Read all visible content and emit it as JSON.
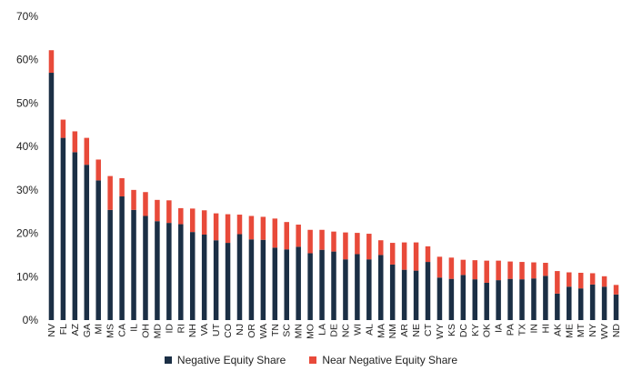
{
  "chart_data": {
    "type": "bar",
    "stacked": true,
    "title": "",
    "xlabel": "",
    "ylabel": "",
    "ylim": [
      0,
      70
    ],
    "yticks": [
      0,
      10,
      20,
      30,
      40,
      50,
      60,
      70
    ],
    "ytick_labels": [
      "0%",
      "10%",
      "20%",
      "30%",
      "40%",
      "50%",
      "60%",
      "70%"
    ],
    "grid": false,
    "legend_position": "bottom",
    "categories": [
      "NV",
      "FL",
      "AZ",
      "GA",
      "MI",
      "MS",
      "CA",
      "IL",
      "OH",
      "MD",
      "ID",
      "RI",
      "NH",
      "VA",
      "UT",
      "CO",
      "NJ",
      "OR",
      "WA",
      "TN",
      "SC",
      "MN",
      "MO",
      "LA",
      "DE",
      "NC",
      "WI",
      "AL",
      "MA",
      "NM",
      "AR",
      "NE",
      "CT",
      "WY",
      "KS",
      "DC",
      "KY",
      "OK",
      "IA",
      "PA",
      "TX",
      "IN",
      "HI",
      "AK",
      "ME",
      "MT",
      "NY",
      "WV",
      "ND"
    ],
    "series": [
      {
        "name": "Negative Equity Share",
        "color": "#1b2f45",
        "values": [
          57.0,
          42.0,
          38.7,
          35.8,
          32.2,
          25.4,
          28.5,
          25.4,
          24.0,
          22.8,
          22.4,
          22.1,
          20.3,
          19.7,
          18.4,
          17.8,
          19.8,
          18.6,
          18.5,
          16.7,
          16.3,
          16.9,
          15.4,
          16.2,
          15.8,
          14.0,
          15.2,
          14.0,
          15.0,
          12.8,
          11.6,
          11.4,
          13.4,
          9.8,
          9.5,
          10.4,
          9.4,
          8.6,
          9.2,
          9.5,
          9.4,
          9.6,
          10.2,
          6.1,
          7.7,
          7.3,
          8.2,
          7.7,
          5.9
        ]
      },
      {
        "name": "Near Negative Equity Share",
        "color": "#e84a3a",
        "values": [
          5.2,
          4.2,
          4.8,
          6.2,
          4.8,
          7.8,
          4.2,
          4.6,
          5.5,
          4.9,
          5.2,
          3.7,
          5.4,
          5.6,
          6.2,
          6.6,
          4.5,
          5.4,
          5.3,
          6.7,
          6.3,
          5.1,
          5.4,
          4.6,
          4.6,
          6.2,
          4.9,
          5.9,
          3.4,
          5.0,
          6.3,
          6.5,
          3.6,
          4.8,
          4.9,
          3.5,
          4.4,
          5.1,
          4.5,
          4.0,
          4.0,
          3.7,
          3.0,
          5.2,
          3.3,
          3.6,
          2.6,
          2.4,
          2.2
        ]
      }
    ]
  }
}
